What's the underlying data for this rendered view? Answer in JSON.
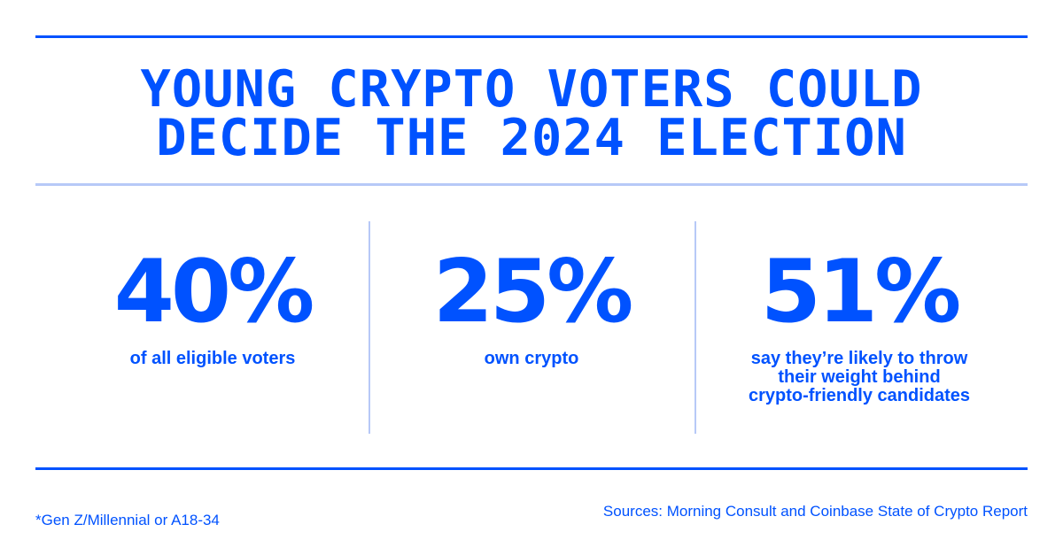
{
  "title": [
    "YOUNG CRYPTO VOTERS COULD",
    "DECIDE THE 2024 ELECTION"
  ],
  "stats": [
    {
      "value": "40%",
      "label": [
        "of all eligible voters"
      ]
    },
    {
      "value": "25%",
      "label": [
        "own crypto"
      ]
    },
    {
      "value": "51%",
      "label": [
        "say they’re likely to throw",
        "their weight behind",
        "crypto-friendly candidates"
      ]
    }
  ],
  "footnote": "*Gen Z/Millennial or A18-34",
  "sources": "Sources: Morning Consult and Coinbase State of Crypto Report"
}
